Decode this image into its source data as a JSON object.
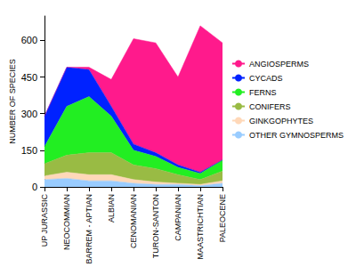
{
  "chart_data": {
    "type": "area",
    "y_label": "NUMBER OF SPECIES",
    "categories": [
      "UP JURASSIC",
      "NEOCOMMIAN",
      "BARREM - APTIAN",
      "ALBIAN",
      "CENOMANIAN",
      "TURON-SANTON",
      "CAMPANIAN",
      "MAASTRICHTIAN",
      "PALEOCENE"
    ],
    "series": [
      {
        "name": "OTHER GYMNOSPERMS",
        "color": "#99ccff",
        "values": [
          30,
          35,
          25,
          25,
          15,
          10,
          10,
          5,
          15
        ]
      },
      {
        "name": "GINKGOPHYTES",
        "color": "#ffd8b8",
        "values": [
          15,
          25,
          25,
          25,
          15,
          10,
          5,
          5,
          10
        ]
      },
      {
        "name": "CONIFERS",
        "color": "#99bb44",
        "values": [
          50,
          70,
          90,
          90,
          60,
          55,
          35,
          20,
          40
        ]
      },
      {
        "name": "FERNS",
        "color": "#22ee22",
        "values": [
          70,
          200,
          230,
          150,
          60,
          50,
          30,
          25,
          45
        ]
      },
      {
        "name": "CYCADS",
        "color": "#0022ff",
        "values": [
          125,
          160,
          110,
          40,
          25,
          15,
          10,
          5,
          0
        ]
      },
      {
        "name": "ANGIOSPERMS",
        "color": "#ff1a8c",
        "values": [
          0,
          0,
          10,
          110,
          432,
          450,
          360,
          600,
          480
        ]
      }
    ],
    "ylim": [
      0,
      700
    ],
    "yticks": [
      0,
      150,
      300,
      450,
      600
    ],
    "stacked": true,
    "grid": false,
    "legend": "right"
  }
}
